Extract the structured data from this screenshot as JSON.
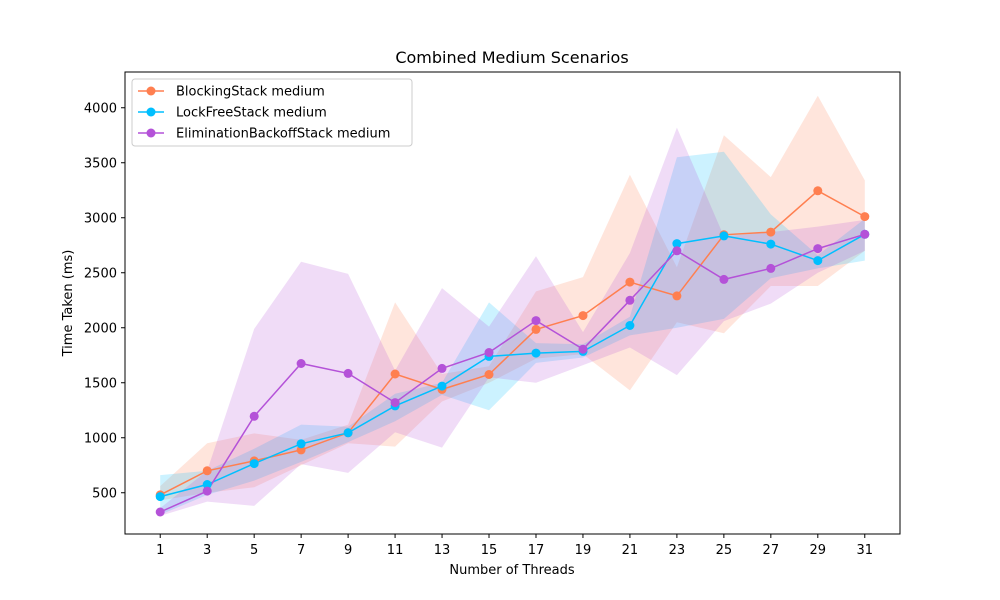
{
  "chart_data": {
    "type": "line",
    "title": "Combined Medium Scenarios",
    "xlabel": "Number of Threads",
    "ylabel": "Time Taken (ms)",
    "x": [
      1,
      3,
      5,
      7,
      9,
      11,
      13,
      15,
      17,
      19,
      21,
      23,
      25,
      27,
      29,
      31
    ],
    "xlim": [
      -0.5,
      32.5
    ],
    "ylim": [
      125,
      4325
    ],
    "yticks": [
      500,
      1000,
      1500,
      2000,
      2500,
      3000,
      3500,
      4000
    ],
    "grid": false,
    "legend_position": "top-left",
    "series": [
      {
        "name": "BlockingStack medium",
        "color": "#ff7f50",
        "values": [
          480,
          700,
          790,
          890,
          1045,
          1580,
          1440,
          1575,
          1985,
          2110,
          2415,
          2290,
          2845,
          2870,
          3245,
          3010
        ],
        "lower": [
          430,
          500,
          550,
          750,
          950,
          920,
          1330,
          1500,
          1720,
          1760,
          1430,
          2050,
          1950,
          2380,
          2380,
          2700
        ],
        "upper": [
          560,
          950,
          1040,
          980,
          1120,
          2230,
          1580,
          1650,
          2330,
          2460,
          3390,
          2550,
          3750,
          3370,
          4110,
          3340
        ]
      },
      {
        "name": "LockFreeStack medium",
        "color": "#00bfff",
        "values": [
          465,
          575,
          765,
          945,
          1045,
          1290,
          1470,
          1740,
          1770,
          1785,
          2020,
          2765,
          2835,
          2760,
          2610,
          2850
        ],
        "lower": [
          300,
          480,
          610,
          780,
          960,
          1150,
          1390,
          1250,
          1680,
          1730,
          1930,
          2000,
          2080,
          2450,
          2540,
          2610
        ],
        "upper": [
          660,
          700,
          900,
          1120,
          1100,
          1400,
          1500,
          2230,
          1860,
          1850,
          2100,
          3550,
          3600,
          3030,
          2660,
          2990
        ]
      },
      {
        "name": "EliminationBackoffStack medium",
        "color": "#b452d8",
        "values": [
          325,
          515,
          1195,
          1675,
          1585,
          1320,
          1630,
          1775,
          2065,
          1805,
          2250,
          2700,
          2440,
          2540,
          2720,
          2850
        ],
        "lower": [
          290,
          420,
          380,
          760,
          680,
          1050,
          910,
          1550,
          1500,
          1660,
          1820,
          1570,
          2060,
          2220,
          2500,
          2700
        ],
        "upper": [
          360,
          700,
          1990,
          2600,
          2490,
          1610,
          2360,
          2010,
          2650,
          1960,
          2680,
          3820,
          2830,
          2870,
          2920,
          2980
        ]
      }
    ]
  }
}
